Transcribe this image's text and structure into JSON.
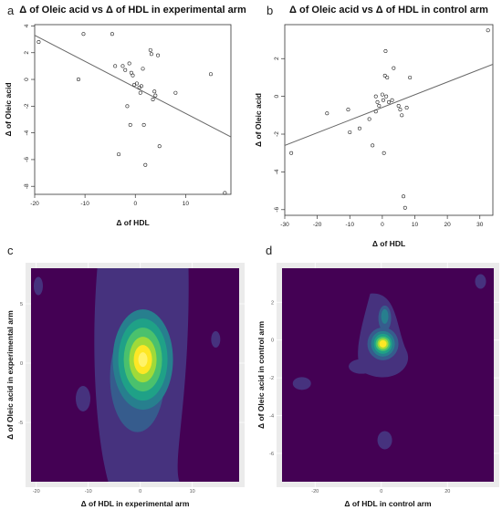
{
  "chart_data": [
    {
      "panel": "a",
      "type": "scatter",
      "title": "Δ of Oleic acid vs Δ of HDL in experimental arm",
      "xlabel": "Δ of HDL",
      "ylabel": "Δ of Oleic acid",
      "xlim": [
        -20,
        19
      ],
      "ylim": [
        -8.6,
        4.1
      ],
      "xticks": [
        -20,
        -10,
        0,
        10
      ],
      "yticks": [
        -8,
        -6,
        -4,
        -2,
        0,
        2,
        4
      ],
      "grid": false,
      "points": [
        {
          "x": -19.2,
          "y": 2.8
        },
        {
          "x": -11.3,
          "y": 0.0
        },
        {
          "x": -10.3,
          "y": 3.4
        },
        {
          "x": -4.6,
          "y": 3.4
        },
        {
          "x": -4.0,
          "y": 1.0
        },
        {
          "x": -3.3,
          "y": -5.6
        },
        {
          "x": -2.5,
          "y": 1.0
        },
        {
          "x": -2.0,
          "y": 0.7
        },
        {
          "x": -1.6,
          "y": -2.0
        },
        {
          "x": -1.2,
          "y": 1.2
        },
        {
          "x": -1.0,
          "y": -3.4
        },
        {
          "x": -0.8,
          "y": 0.5
        },
        {
          "x": -0.5,
          "y": 0.3
        },
        {
          "x": -0.2,
          "y": -0.4
        },
        {
          "x": 0.3,
          "y": -0.3
        },
        {
          "x": 0.8,
          "y": -0.6
        },
        {
          "x": 1.0,
          "y": -1.0
        },
        {
          "x": 1.2,
          "y": -0.5
        },
        {
          "x": 1.5,
          "y": 0.8
        },
        {
          "x": 1.7,
          "y": -3.4
        },
        {
          "x": 2.0,
          "y": -6.4
        },
        {
          "x": 3.0,
          "y": 2.2
        },
        {
          "x": 3.2,
          "y": 1.9
        },
        {
          "x": 3.5,
          "y": -1.5
        },
        {
          "x": 3.8,
          "y": -0.9
        },
        {
          "x": 4.0,
          "y": -1.2
        },
        {
          "x": 4.5,
          "y": 1.8
        },
        {
          "x": 4.8,
          "y": -5.0
        },
        {
          "x": 8.0,
          "y": -1.0
        },
        {
          "x": 15.0,
          "y": 0.4
        },
        {
          "x": 17.8,
          "y": -8.5
        }
      ],
      "fit_line": [
        {
          "x": -20,
          "y": 3.3
        },
        {
          "x": 19,
          "y": -4.3
        }
      ]
    },
    {
      "panel": "b",
      "type": "scatter",
      "title": "Δ of Oleic acid vs Δ of HDL in control arm",
      "xlabel": "Δ of HDL",
      "ylabel": "Δ of Oleic acid",
      "xlim": [
        -30,
        34
      ],
      "ylim": [
        -6.3,
        3.8
      ],
      "xticks": [
        -30,
        -20,
        -10,
        0,
        10,
        20,
        30
      ],
      "yticks": [
        -6,
        -4,
        -2,
        0,
        2
      ],
      "grid": false,
      "points": [
        {
          "x": -28.0,
          "y": -3.0
        },
        {
          "x": -17.0,
          "y": -0.9
        },
        {
          "x": -10.5,
          "y": -0.7
        },
        {
          "x": -10.0,
          "y": -1.9
        },
        {
          "x": -7.0,
          "y": -1.7
        },
        {
          "x": -4.0,
          "y": -1.2
        },
        {
          "x": -3.0,
          "y": -2.6
        },
        {
          "x": -2.0,
          "y": -0.8
        },
        {
          "x": -2.0,
          "y": 0.0
        },
        {
          "x": -1.5,
          "y": -0.3
        },
        {
          "x": -1.0,
          "y": -0.5
        },
        {
          "x": 0.0,
          "y": 0.1
        },
        {
          "x": 0.3,
          "y": -0.2
        },
        {
          "x": 0.5,
          "y": -3.0
        },
        {
          "x": 0.8,
          "y": 1.1
        },
        {
          "x": 1.0,
          "y": 2.4
        },
        {
          "x": 1.2,
          "y": 0.0
        },
        {
          "x": 1.5,
          "y": 1.0
        },
        {
          "x": 2.0,
          "y": -0.3
        },
        {
          "x": 3.0,
          "y": -0.2
        },
        {
          "x": 3.5,
          "y": 1.5
        },
        {
          "x": 5.0,
          "y": -0.5
        },
        {
          "x": 5.5,
          "y": -0.7
        },
        {
          "x": 6.0,
          "y": -1.0
        },
        {
          "x": 6.5,
          "y": -5.3
        },
        {
          "x": 7.0,
          "y": -5.9
        },
        {
          "x": 7.5,
          "y": -0.6
        },
        {
          "x": 8.5,
          "y": 1.0
        },
        {
          "x": 32.5,
          "y": 3.5
        }
      ],
      "fit_line": [
        {
          "x": -30,
          "y": -2.6
        },
        {
          "x": 34,
          "y": 1.7
        }
      ]
    },
    {
      "panel": "c",
      "type": "heatmap",
      "title": "",
      "xlabel": "Δ of HDL in experimental arm",
      "ylabel": "Δ of Oleic acid in experimental arm",
      "xlim": [
        -21,
        19
      ],
      "ylim": [
        -10,
        8
      ],
      "xticks": [
        -20,
        -10,
        0,
        10
      ],
      "yticks": [
        -5,
        0,
        5
      ],
      "grid": true,
      "colormap": [
        "#440154",
        "#46327e",
        "#365c8d",
        "#277f8e",
        "#1fa187",
        "#4ac16d",
        "#a0da39",
        "#fde725"
      ],
      "density_peak": {
        "x": 0.5,
        "y": 0.3
      },
      "background_color": "#440154",
      "panel_bg": "#ebebeb"
    },
    {
      "panel": "d",
      "type": "heatmap",
      "title": "",
      "xlabel": "Δ of HDL in control arm",
      "ylabel": "Δ of Oleic acid in control arm",
      "xlim": [
        -30,
        34
      ],
      "ylim": [
        -7.5,
        3.8
      ],
      "xticks": [
        -20,
        0,
        20
      ],
      "yticks": [
        -6,
        -4,
        -2,
        0,
        2
      ],
      "grid": true,
      "colormap": [
        "#440154",
        "#46327e",
        "#365c8d",
        "#277f8e",
        "#1fa187",
        "#4ac16d",
        "#a0da39",
        "#fde725"
      ],
      "density_peak": {
        "x": 0.5,
        "y": -0.2
      },
      "background_color": "#440154",
      "panel_bg": "#ebebeb"
    }
  ],
  "panel_letters": [
    "a",
    "b",
    "c",
    "d"
  ]
}
